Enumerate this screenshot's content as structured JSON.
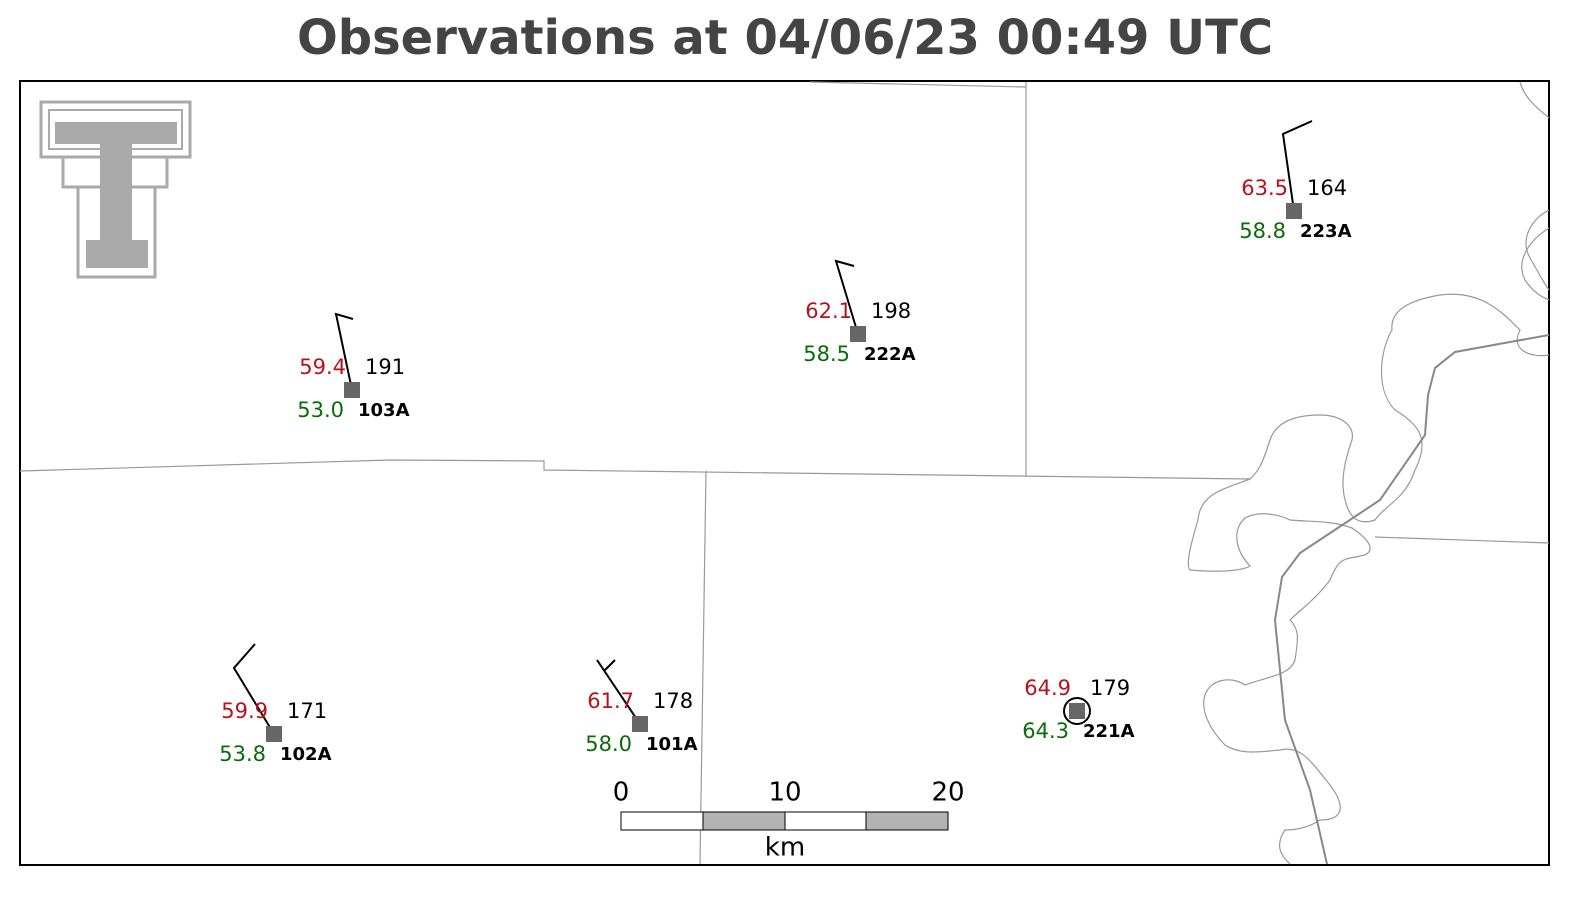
{
  "title": "Observations at 04/06/23 00:49 UTC",
  "stations": [
    {
      "id": "103A",
      "temperature": "59.4",
      "dewpoint": "53.0",
      "pressure": "191"
    },
    {
      "id": "222A",
      "temperature": "62.1",
      "dewpoint": "58.5",
      "pressure": "198"
    },
    {
      "id": "223A",
      "temperature": "63.5",
      "dewpoint": "58.8",
      "pressure": "164"
    },
    {
      "id": "102A",
      "temperature": "59.9",
      "dewpoint": "53.8",
      "pressure": "171"
    },
    {
      "id": "101A",
      "temperature": "61.7",
      "dewpoint": "58.0",
      "pressure": "178"
    },
    {
      "id": "221A",
      "temperature": "64.9",
      "dewpoint": "64.3",
      "pressure": "179"
    }
  ],
  "scale_bar": {
    "labels": [
      "0",
      "10",
      "20"
    ],
    "unit": "km"
  }
}
